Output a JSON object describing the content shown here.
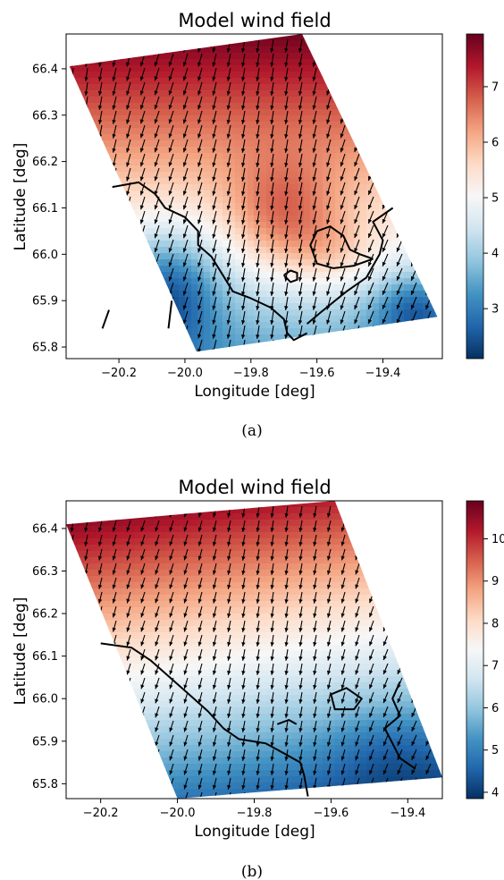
{
  "chart_data": [
    {
      "type": "heatmap",
      "title": "Model wind field",
      "xlabel": "Longitude [deg]",
      "ylabel": "Latitude [deg]",
      "xlim": [
        -20.36,
        -19.22
      ],
      "ylim": [
        65.775,
        66.475
      ],
      "xticks": [
        -20.2,
        -20.0,
        -19.8,
        -19.6,
        -19.4
      ],
      "xtick_labels": [
        "−20.2",
        "−20.0",
        "−19.8",
        "−19.6",
        "−19.4"
      ],
      "yticks": [
        65.8,
        65.9,
        66.0,
        66.1,
        66.2,
        66.3,
        66.4
      ],
      "ytick_labels": [
        "65.8",
        "65.9",
        "66.0",
        "66.1",
        "66.2",
        "66.3",
        "66.4"
      ],
      "colorbar": {
        "colormap": "RdBu_r",
        "range": [
          2.1,
          7.95
        ],
        "ticks": [
          3,
          4,
          5,
          6,
          7
        ],
        "tick_labels": [
          "3",
          "4",
          "5",
          "6",
          "7"
        ]
      },
      "domain_corners": [
        [
          -20.35,
          66.405
        ],
        [
          -19.645,
          66.475
        ],
        [
          -19.235,
          65.865
        ],
        [
          -19.965,
          65.79
        ]
      ],
      "arrows": "field of short black arrows pointing roughly south (wind direction)",
      "coastline": "black coastline outline",
      "caption": "(a)"
    },
    {
      "type": "heatmap",
      "title": "Model wind field",
      "xlabel": "Longitude [deg]",
      "ylabel": "Latitude [deg]",
      "xlim": [
        -20.29,
        -19.31
      ],
      "ylim": [
        65.765,
        66.465
      ],
      "xticks": [
        -20.2,
        -20.0,
        -19.8,
        -19.6,
        -19.4
      ],
      "xtick_labels": [
        "−20.2",
        "−20.0",
        "−19.8",
        "−19.6",
        "−19.4"
      ],
      "yticks": [
        65.8,
        65.9,
        66.0,
        66.1,
        66.2,
        66.3,
        66.4
      ],
      "ytick_labels": [
        "65.8",
        "65.9",
        "66.0",
        "66.1",
        "66.2",
        "66.3",
        "66.4"
      ],
      "colorbar": {
        "colormap": "RdBu_r",
        "range": [
          3.85,
          10.9
        ],
        "ticks": [
          4,
          5,
          6,
          7,
          8,
          9,
          10
        ],
        "tick_labels": [
          "4",
          "5",
          "6",
          "7",
          "8",
          "9",
          "10"
        ]
      },
      "domain_corners": [
        [
          -20.29,
          66.41
        ],
        [
          -19.59,
          66.465
        ],
        [
          -19.31,
          65.815
        ],
        [
          -20.0,
          65.765
        ]
      ],
      "arrows": "field of short black arrows pointing roughly south (wind direction)",
      "coastline": "black coastline outline",
      "caption": "(b)"
    }
  ]
}
